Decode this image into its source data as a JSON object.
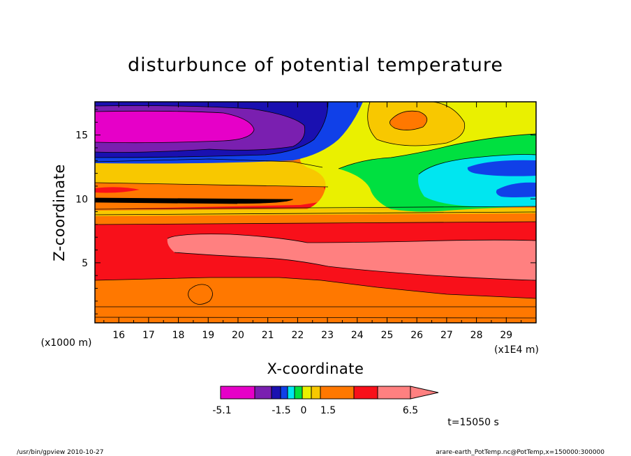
{
  "chart_data": {
    "type": "heatmap",
    "title": "disturbunce of potential temperature",
    "xlabel": "X-coordinate",
    "ylabel": "Z-coordinate",
    "x_unit_note": "(x1E4 m)",
    "y_unit_note": "(x1000 m)",
    "xlim": [
      15.2,
      30
    ],
    "ylim": [
      0.3,
      17.6
    ],
    "x_ticks": [
      "16",
      "17",
      "18",
      "19",
      "20",
      "21",
      "22",
      "23",
      "24",
      "25",
      "26",
      "27",
      "28",
      "29"
    ],
    "y_ticks": [
      "5",
      "10",
      "15"
    ],
    "colorbar_labels": [
      "-5.1",
      "-1.5",
      "0",
      "1.5",
      "6.5"
    ],
    "colors": {
      "c1": "#e600c8",
      "c2": "#7a1fb0",
      "c3": "#1a10b0",
      "c4": "#1040e8",
      "c5": "#00e6f0",
      "c6": "#00e040",
      "c7": "#eaf000",
      "c8": "#f8c800",
      "c9": "#ff7800",
      "c10": "#f8101a",
      "c11": "#ff8080"
    },
    "time_label": "t=15050 s"
  },
  "footer": {
    "left": "/usr/bin/gpview  2010-10-27",
    "right": "arare-earth_PotTemp.nc@PotTemp,x=150000:300000"
  }
}
